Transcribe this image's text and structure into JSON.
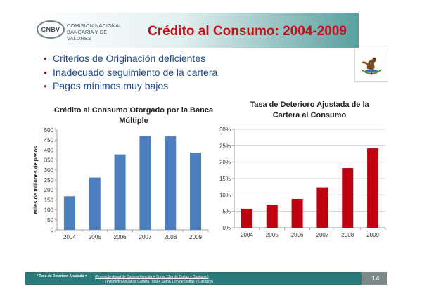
{
  "header": {
    "logo_abbrev": "CNBV",
    "logo_line1": "COMISION NACIONAL",
    "logo_line2": "BANCARIA Y DE VALORES",
    "title": "Crédito al Consumo: 2004-2009"
  },
  "bullets": [
    "Criterios de Originación deficientes",
    "Inadecuado seguimiento de la cartera",
    "Pagos mínimos muy bajos"
  ],
  "colors": {
    "title": "#c0111a",
    "bullet_text": "#1f4a8a",
    "blue_bars": "#4a7ebf",
    "red_bars": "#c0000f",
    "footer": "#2b7a7a"
  },
  "chart_data": [
    {
      "type": "bar",
      "title": "Crédito al Consumo Otorgado por la Banca Múltiple",
      "ylabel": "Miles de millones de pesos",
      "categories": [
        "2004",
        "2005",
        "2006",
        "2007",
        "2008",
        "2009"
      ],
      "values": [
        168,
        262,
        378,
        470,
        468,
        387
      ],
      "ylim": [
        0,
        500
      ],
      "yticks": [
        "0",
        "50",
        "100",
        "150",
        "200",
        "250",
        "300",
        "350",
        "400",
        "450",
        "500"
      ],
      "grid": false,
      "color": "#4a7ebf"
    },
    {
      "type": "bar",
      "title": "Tasa de Deterioro Ajustada de la Cartera al Consumo",
      "categories": [
        "2004",
        "2005",
        "2006",
        "2007",
        "2008",
        "2009"
      ],
      "values": [
        5.8,
        7.0,
        8.8,
        12.3,
        18.2,
        24.2
      ],
      "ylim": [
        0,
        30
      ],
      "yticks": [
        "0%",
        "5%",
        "10%",
        "15%",
        "20%",
        "25%",
        "30%"
      ],
      "grid": true,
      "color": "#c0000f"
    }
  ],
  "footer": {
    "note_label": "* Tasa de Deterioro Ajustada =",
    "numerator": "(Promedio Anual de Cartera Vencida + Suma 12m de Quitas y Castigos )",
    "denominator": "(Promedio Anual de Cartera Total + Suma 12m de Quitas y Castigos)",
    "page_number": "14"
  }
}
